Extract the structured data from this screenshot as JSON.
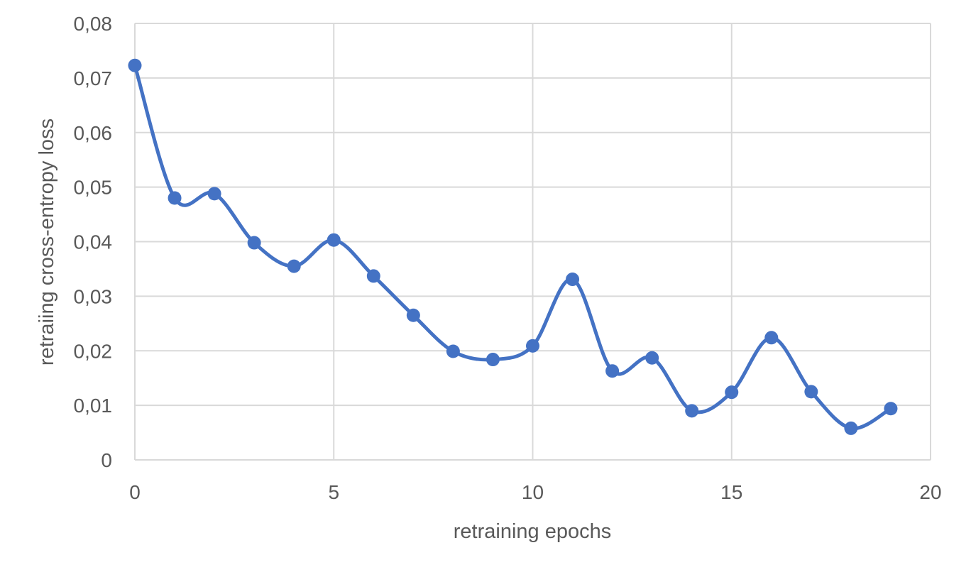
{
  "chart_data": {
    "type": "scatter",
    "title": "",
    "xlabel": "retraining epochs",
    "ylabel": "retraiing cross-entropy loss",
    "xlim": [
      0,
      20
    ],
    "ylim": [
      0,
      0.08
    ],
    "xticks": [
      0,
      5,
      10,
      15,
      20
    ],
    "xtick_labels": [
      "0",
      "5",
      "10",
      "15",
      "20"
    ],
    "yticks": [
      0,
      0.01,
      0.02,
      0.03,
      0.04,
      0.05,
      0.06,
      0.07,
      0.08
    ],
    "ytick_labels": [
      "0",
      "0,01",
      "0,02",
      "0,03",
      "0,04",
      "0,05",
      "0,06",
      "0,07",
      "0,08"
    ],
    "grid": true,
    "smooth_line": true,
    "series": [
      {
        "color": "#4472c4",
        "x": [
          0,
          1,
          2,
          3,
          4,
          5,
          6,
          7,
          8,
          9,
          10,
          11,
          12,
          13,
          14,
          15,
          16,
          17,
          18,
          19
        ],
        "y": [
          0.0723,
          0.048,
          0.0488,
          0.0398,
          0.0355,
          0.0403,
          0.0337,
          0.0265,
          0.0199,
          0.0184,
          0.0209,
          0.0331,
          0.0163,
          0.0187,
          0.009,
          0.0124,
          0.0224,
          0.0125,
          0.0058,
          0.0094
        ]
      }
    ]
  }
}
